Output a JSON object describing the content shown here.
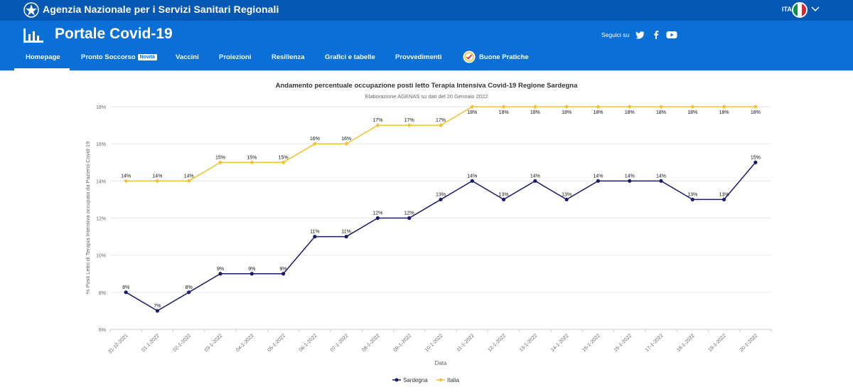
{
  "topbar": {
    "org_name": "Agenzia Nazionale per i Servizi Sanitari Regionali",
    "language": "ITA"
  },
  "header": {
    "title": "Portale Covid-19",
    "follow_label": "Seguici su",
    "social_icons": [
      "twitter-icon",
      "facebook-icon",
      "youtube-icon"
    ]
  },
  "nav": {
    "items": [
      {
        "label": "Homepage",
        "active": true
      },
      {
        "label": "Pronto Soccorso",
        "badge": "Novità"
      },
      {
        "label": "Vaccini"
      },
      {
        "label": "Proiezioni"
      },
      {
        "label": "Resilienza"
      },
      {
        "label": "Grafici e tabelle"
      },
      {
        "label": "Provvedimenti"
      },
      {
        "label": "Buone Pratiche"
      }
    ]
  },
  "colors": {
    "topbar": "#0559b5",
    "header": "#0b6fd8",
    "sardegna": "#1b1a6b",
    "italia": "#f2c12e"
  },
  "chart_data": {
    "type": "line",
    "title": "Andamento percentuale occupazione posti letto Terapia Intensiva Covid-19 Regione Sardegna",
    "subtitle": "Elaborazione AGENAS su dati del 20 Gennaio 2022",
    "xlabel": "Data",
    "ylabel": "% Posti Letto di Terapia Intensiva occupata da Pazienti Covid-19",
    "ylim": [
      6,
      18
    ],
    "yticks": [
      "6%",
      "8%",
      "10%",
      "12%",
      "14%",
      "16%",
      "18%"
    ],
    "grid": true,
    "legend_position": "bottom",
    "categories": [
      "31-12-2021",
      "01-1-2022",
      "02-1-2022",
      "03-1-2022",
      "04-1-2022",
      "05-1-2022",
      "06-1-2022",
      "07-1-2022",
      "08-1-2022",
      "09-1-2022",
      "10-1-2022",
      "11-1-2022",
      "12-1-2022",
      "13-1-2022",
      "14-1-2022",
      "15-1-2022",
      "16-1-2022",
      "17-1-2022",
      "18-1-2022",
      "19-1-2022",
      "20-1-2022"
    ],
    "series": [
      {
        "name": "Sardegna",
        "values": [
          8,
          7,
          8,
          9,
          9,
          9,
          11,
          11,
          12,
          12,
          13,
          14,
          13,
          14,
          13,
          14,
          14,
          14,
          13,
          13,
          15
        ]
      },
      {
        "name": "Italia",
        "values": [
          14,
          14,
          14,
          15,
          15,
          15,
          16,
          16,
          17,
          17,
          17,
          18,
          18,
          18,
          18,
          18,
          18,
          18,
          18,
          18,
          18
        ]
      }
    ]
  }
}
